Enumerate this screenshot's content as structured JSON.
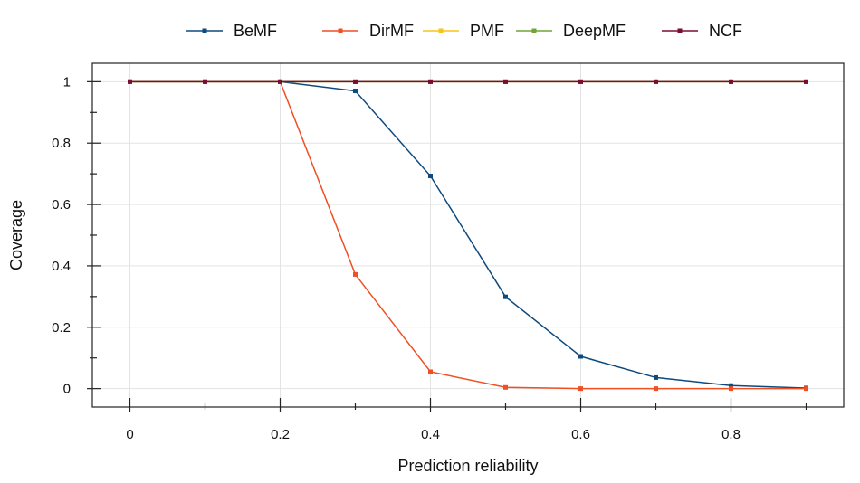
{
  "chart_data": {
    "type": "line",
    "xlabel": "Prediction reliability",
    "ylabel": "Coverage",
    "x": [
      0,
      0.1,
      0.2,
      0.3,
      0.4,
      0.5,
      0.6,
      0.7,
      0.8,
      0.9
    ],
    "xlim": [
      -0.05,
      0.95
    ],
    "ylim": [
      -0.06,
      1.06
    ],
    "x_ticks": [
      0,
      0.2,
      0.4,
      0.6,
      0.8
    ],
    "x_tick_labels": [
      "0",
      "0.2",
      "0.4",
      "0.6",
      "0.8"
    ],
    "x_minor_ticks": [
      0.1,
      0.3,
      0.5,
      0.7,
      0.9
    ],
    "y_ticks": [
      0,
      0.2,
      0.4,
      0.6,
      0.8,
      1
    ],
    "y_tick_labels": [
      "0",
      "0.2",
      "0.4",
      "0.6",
      "0.8",
      "1"
    ],
    "y_minor_ticks": [
      0.1,
      0.3,
      0.5,
      0.7,
      0.9
    ],
    "grid": true,
    "legend_position": "top",
    "series": [
      {
        "name": "BeMF",
        "color": "#0d4a7f",
        "values": [
          1,
          1,
          1,
          0.97,
          0.693,
          0.299,
          0.105,
          0.036,
          0.01,
          0.002
        ]
      },
      {
        "name": "DirMF",
        "color": "#f04e23",
        "values": [
          1,
          1,
          1,
          0.372,
          0.055,
          0.004,
          0.0,
          0.0,
          0.0,
          0.0
        ]
      },
      {
        "name": "PMF",
        "color": "#f5c518",
        "values": [
          1,
          1,
          1,
          1,
          1,
          1,
          1,
          1,
          1,
          1
        ]
      },
      {
        "name": "DeepMF",
        "color": "#6ea535",
        "values": [
          1,
          1,
          1,
          1,
          1,
          1,
          1,
          1,
          1,
          1
        ]
      },
      {
        "name": "NCF",
        "color": "#7a0e30",
        "values": [
          1,
          1,
          1,
          1,
          1,
          1,
          1,
          1,
          1,
          1
        ]
      }
    ]
  }
}
